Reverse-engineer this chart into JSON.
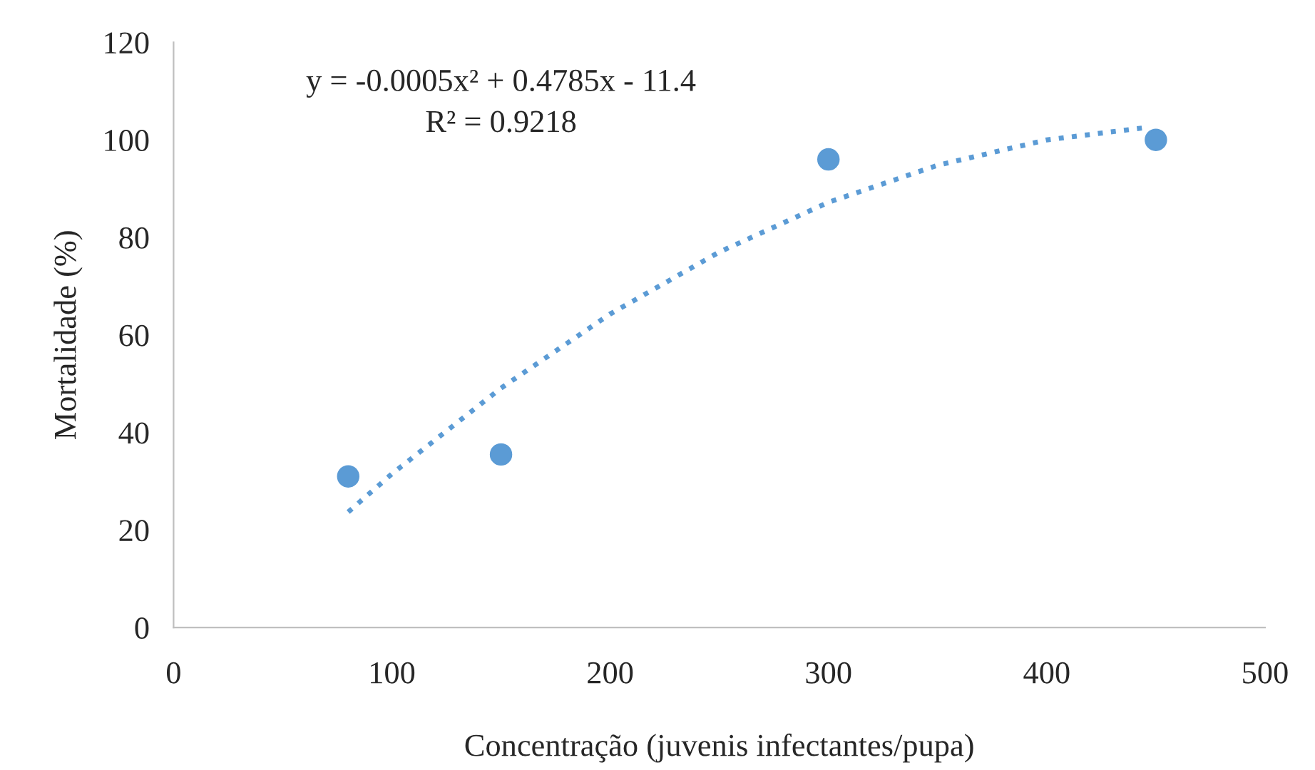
{
  "chart_data": {
    "type": "scatter",
    "xlabel": "Concentração (juvenis infectantes/pupa)",
    "ylabel": "Mortalidade (%)",
    "series": [
      {
        "color": "#5b9bd5",
        "x": [
          80,
          150,
          300,
          450
        ],
        "values": [
          31,
          35.5,
          96,
          100
        ],
        "marker": "circle"
      },
      {
        "type": "line",
        "color": "#5b9bd5",
        "line_style": "dotted",
        "marker": "none",
        "x": [
          80,
          100,
          150,
          200,
          250,
          300,
          350,
          400,
          445
        ],
        "values": [
          23.7,
          31.5,
          49.1,
          64.3,
          77,
          87.2,
          94.8,
          100,
          102.5
        ]
      }
    ],
    "annotations": [
      "y = -0.0005x² + 0.4785x - 11.4",
      "R² = 0.9218"
    ],
    "xlim": [
      0,
      500
    ],
    "xticks": [
      0,
      100,
      200,
      300,
      400,
      500
    ],
    "ylim": [
      0,
      120
    ],
    "yticks": [
      0,
      20,
      40,
      60,
      80,
      100,
      120
    ],
    "grid": false,
    "legend": false
  }
}
